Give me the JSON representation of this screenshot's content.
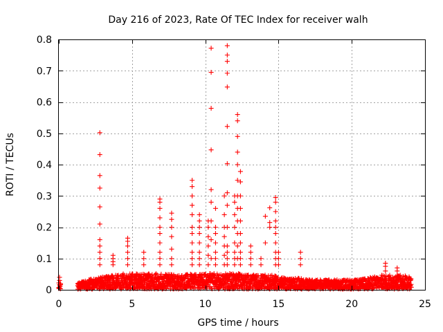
{
  "chart_data": {
    "type": "scatter",
    "title": "Day 216 of 2023, Rate Of TEC Index for receiver walh",
    "xlabel": "GPS time / hours",
    "ylabel": "ROTI / TECUs",
    "xlim": [
      0,
      25
    ],
    "ylim": [
      0,
      0.8
    ],
    "xticks": [
      "0",
      "5",
      "10",
      "15",
      "20",
      "25"
    ],
    "xtick_values": [
      0,
      5,
      10,
      15,
      20,
      25
    ],
    "yticks": [
      "0",
      "0.1",
      "0.2",
      "0.3",
      "0.4",
      "0.5",
      "0.6",
      "0.7",
      "0.8"
    ],
    "ytick_values": [
      0,
      0.1,
      0.2,
      0.3,
      0.4,
      0.5,
      0.6,
      0.7,
      0.8
    ],
    "grid": true,
    "marker": "+",
    "color": "#ff0000",
    "series": [
      {
        "baseline_band": [
          [
            0.0,
            0.02
          ],
          [
            1.3,
            0.02
          ],
          [
            1.6,
            0.025
          ],
          [
            2.0,
            0.03
          ],
          [
            2.5,
            0.035
          ],
          [
            3.0,
            0.04
          ],
          [
            3.5,
            0.045
          ],
          [
            4.0,
            0.045
          ],
          [
            4.5,
            0.05
          ],
          [
            5.0,
            0.05
          ],
          [
            5.5,
            0.05
          ],
          [
            6.0,
            0.05
          ],
          [
            6.5,
            0.05
          ],
          [
            7.0,
            0.05
          ],
          [
            7.5,
            0.05
          ],
          [
            8.0,
            0.045
          ],
          [
            8.5,
            0.045
          ],
          [
            9.0,
            0.05
          ],
          [
            9.5,
            0.05
          ],
          [
            10.0,
            0.05
          ],
          [
            10.5,
            0.05
          ],
          [
            11.0,
            0.05
          ],
          [
            11.5,
            0.05
          ],
          [
            12.0,
            0.05
          ],
          [
            12.5,
            0.05
          ],
          [
            13.0,
            0.045
          ],
          [
            13.5,
            0.045
          ],
          [
            14.0,
            0.045
          ],
          [
            14.5,
            0.045
          ],
          [
            15.0,
            0.04
          ],
          [
            15.5,
            0.035
          ],
          [
            16.0,
            0.035
          ],
          [
            16.5,
            0.035
          ],
          [
            17.0,
            0.03
          ],
          [
            17.5,
            0.03
          ],
          [
            18.0,
            0.03
          ],
          [
            18.5,
            0.03
          ],
          [
            19.0,
            0.03
          ],
          [
            19.5,
            0.03
          ],
          [
            20.0,
            0.03
          ],
          [
            20.5,
            0.03
          ],
          [
            21.0,
            0.035
          ],
          [
            21.5,
            0.04
          ],
          [
            22.0,
            0.045
          ],
          [
            22.5,
            0.045
          ],
          [
            23.0,
            0.045
          ],
          [
            23.5,
            0.045
          ],
          [
            24.0,
            0.04
          ]
        ],
        "spikes": [
          {
            "x": 0.05,
            "y": [
              0.03,
              0.04
            ]
          },
          {
            "x": 2.8,
            "y": [
              0.08,
              0.1,
              0.12,
              0.14,
              0.16,
              0.21,
              0.265,
              0.325,
              0.365,
              0.432,
              0.502
            ]
          },
          {
            "x": 3.7,
            "y": [
              0.08,
              0.09,
              0.1,
              0.11
            ]
          },
          {
            "x": 4.7,
            "y": [
              0.08,
              0.1,
              0.12,
              0.14,
              0.155,
              0.165
            ]
          },
          {
            "x": 5.8,
            "y": [
              0.08,
              0.1,
              0.12
            ]
          },
          {
            "x": 6.9,
            "y": [
              0.08,
              0.1,
              0.12,
              0.15,
              0.18,
              0.2,
              0.23,
              0.26,
              0.28,
              0.29
            ]
          },
          {
            "x": 7.7,
            "y": [
              0.08,
              0.1,
              0.13,
              0.17,
              0.2,
              0.225,
              0.245
            ]
          },
          {
            "x": 9.1,
            "y": [
              0.08,
              0.1,
              0.12,
              0.15,
              0.18,
              0.2,
              0.24,
              0.27,
              0.3,
              0.33,
              0.35
            ]
          },
          {
            "x": 9.6,
            "y": [
              0.08,
              0.1,
              0.12,
              0.15,
              0.18,
              0.2,
              0.22,
              0.24
            ]
          },
          {
            "x": 10.2,
            "y": [
              0.08,
              0.11,
              0.14,
              0.17,
              0.2,
              0.22
            ]
          },
          {
            "x": 10.4,
            "y": [
              0.1,
              0.16,
              0.22,
              0.28,
              0.32,
              0.447,
              0.58,
              0.695,
              0.772
            ]
          },
          {
            "x": 10.7,
            "y": [
              0.08,
              0.1,
              0.12,
              0.15,
              0.18,
              0.2,
              0.26
            ]
          },
          {
            "x": 11.3,
            "y": [
              0.08,
              0.11,
              0.14,
              0.17,
              0.2,
              0.24,
              0.3
            ]
          },
          {
            "x": 11.5,
            "y": [
              0.08,
              0.1,
              0.12,
              0.14,
              0.2,
              0.27,
              0.31,
              0.403,
              0.522,
              0.648,
              0.692,
              0.73,
              0.75,
              0.78
            ]
          },
          {
            "x": 12.0,
            "y": [
              0.08,
              0.1,
              0.12,
              0.15,
              0.2,
              0.24,
              0.28,
              0.3
            ]
          },
          {
            "x": 12.2,
            "y": [
              0.1,
              0.14,
              0.18,
              0.22,
              0.26,
              0.3,
              0.35,
              0.4,
              0.44,
              0.49,
              0.54,
              0.56
            ]
          },
          {
            "x": 12.4,
            "y": [
              0.08,
              0.1,
              0.12,
              0.15,
              0.18,
              0.22,
              0.26,
              0.3,
              0.345,
              0.378
            ]
          },
          {
            "x": 13.1,
            "y": [
              0.08,
              0.1,
              0.12,
              0.14
            ]
          },
          {
            "x": 13.8,
            "y": [
              0.08,
              0.1
            ]
          },
          {
            "x": 14.1,
            "y": [
              0.15,
              0.235
            ]
          },
          {
            "x": 14.4,
            "y": [
              0.2,
              0.215,
              0.262
            ]
          },
          {
            "x": 14.8,
            "y": [
              0.08,
              0.1,
              0.12,
              0.15,
              0.18,
              0.2,
              0.22,
              0.25,
              0.28,
              0.295
            ]
          },
          {
            "x": 15.0,
            "y": [
              0.08,
              0.1,
              0.12
            ]
          },
          {
            "x": 16.5,
            "y": [
              0.08,
              0.1,
              0.12
            ]
          },
          {
            "x": 22.3,
            "y": [
              0.06,
              0.075,
              0.085
            ]
          },
          {
            "x": 23.1,
            "y": [
              0.06,
              0.07
            ]
          }
        ]
      }
    ]
  }
}
